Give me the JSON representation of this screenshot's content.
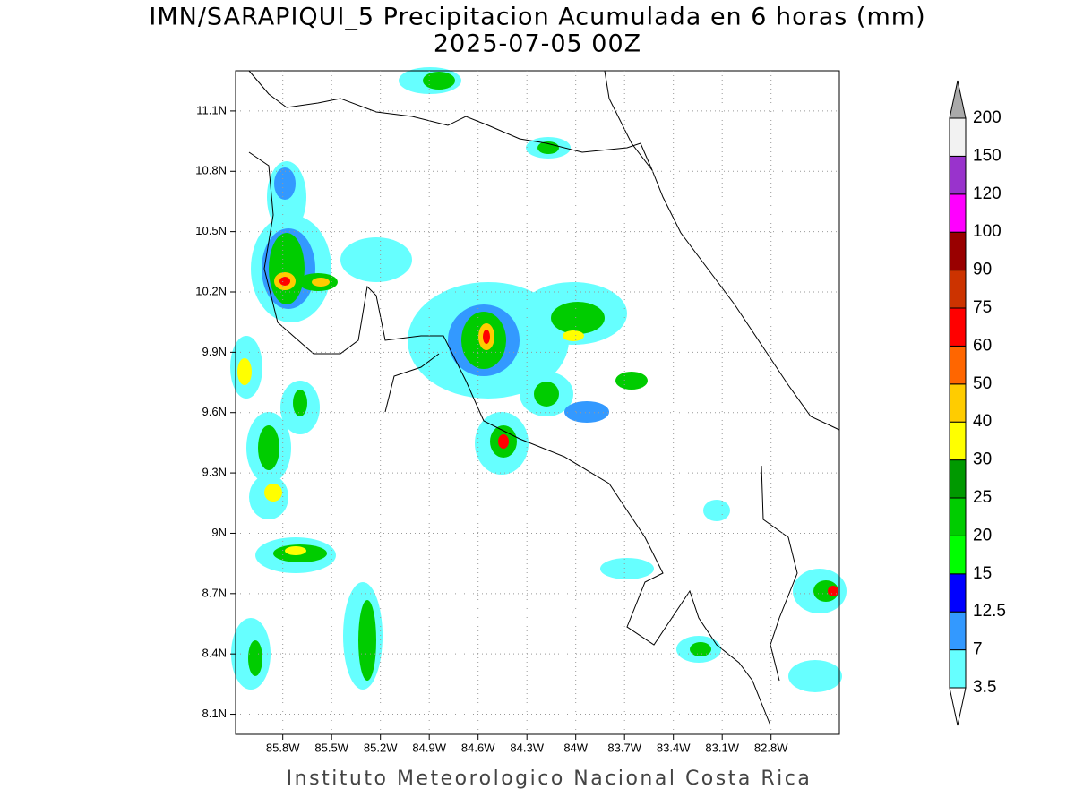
{
  "chart_data": {
    "type": "map",
    "title": "IMN/SARAPIQUI_5 Precipitacion Acumulada en 6 horas (mm)",
    "subtitle": "2025-07-05 00Z",
    "footer": "Instituto Meteorologico Nacional Costa Rica",
    "xlim": [
      -86.09,
      -82.38
    ],
    "ylim": [
      8.0,
      11.3
    ],
    "xticks": [
      {
        "value": -85.8,
        "label": "85.8W"
      },
      {
        "value": -85.5,
        "label": "85.5W"
      },
      {
        "value": -85.2,
        "label": "85.2W"
      },
      {
        "value": -84.9,
        "label": "84.9W"
      },
      {
        "value": -84.6,
        "label": "84.6W"
      },
      {
        "value": -84.3,
        "label": "84.3W"
      },
      {
        "value": -84.0,
        "label": "84W"
      },
      {
        "value": -83.7,
        "label": "83.7W"
      },
      {
        "value": -83.4,
        "label": "83.4W"
      },
      {
        "value": -83.1,
        "label": "83.1W"
      },
      {
        "value": -82.8,
        "label": "82.8W"
      }
    ],
    "yticks": [
      {
        "value": 8.1,
        "label": "8.1N"
      },
      {
        "value": 8.4,
        "label": "8.4N"
      },
      {
        "value": 8.7,
        "label": "8.7N"
      },
      {
        "value": 9.0,
        "label": "9N"
      },
      {
        "value": 9.3,
        "label": "9.3N"
      },
      {
        "value": 9.6,
        "label": "9.6N"
      },
      {
        "value": 9.9,
        "label": "9.9N"
      },
      {
        "value": 10.2,
        "label": "10.2N"
      },
      {
        "value": 10.5,
        "label": "10.5N"
      },
      {
        "value": 10.8,
        "label": "10.8N"
      },
      {
        "value": 11.1,
        "label": "11.1N"
      }
    ],
    "grid": true,
    "colorbar": {
      "levels": [
        3.5,
        7,
        12.5,
        15,
        20,
        25,
        30,
        40,
        50,
        60,
        75,
        90,
        100,
        120,
        150,
        200
      ],
      "colors": [
        "#66ffff",
        "#3399ff",
        "#0000ff",
        "#00ff00",
        "#00cc00",
        "#009900",
        "#ffff00",
        "#ffcc00",
        "#ff6600",
        "#ff0000",
        "#cc3300",
        "#990000",
        "#ff00ff",
        "#9933cc",
        "#f2f2f2"
      ],
      "over_color": "#aaaaaa",
      "under_color": "#ffffff"
    }
  }
}
